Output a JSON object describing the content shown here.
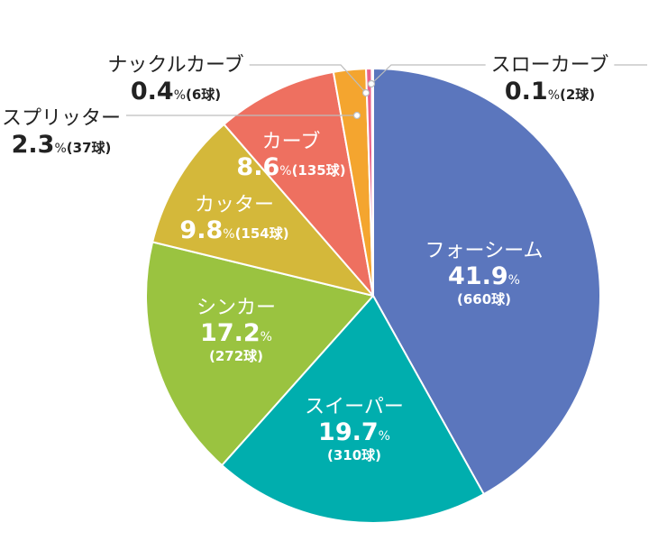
{
  "chart_data": {
    "type": "pie",
    "unit_pct": "%",
    "slices": [
      {
        "label": "フォーシーム",
        "value": 41.9,
        "count": "(660球)",
        "color": "#5b76bd"
      },
      {
        "label": "スイーパー",
        "value": 19.7,
        "count": "(310球)",
        "color": "#00aeae"
      },
      {
        "label": "シンカー",
        "value": 17.2,
        "count": "(272球)",
        "color": "#9ac340"
      },
      {
        "label": "カッター",
        "value": 9.8,
        "count": "(154球)",
        "color": "#d4b83a"
      },
      {
        "label": "カーブ",
        "value": 8.6,
        "count": "(135球)",
        "color": "#ee7060"
      },
      {
        "label": "スプリッター",
        "value": 2.3,
        "count": "(37球)",
        "color": "#f4a52f"
      },
      {
        "label": "ナックルカーブ",
        "value": 0.4,
        "count": "(6球)",
        "color": "#e8628c"
      },
      {
        "label": "スローカーブ",
        "value": 0.1,
        "count": "(2球)",
        "color": "#8e6dae"
      }
    ]
  }
}
